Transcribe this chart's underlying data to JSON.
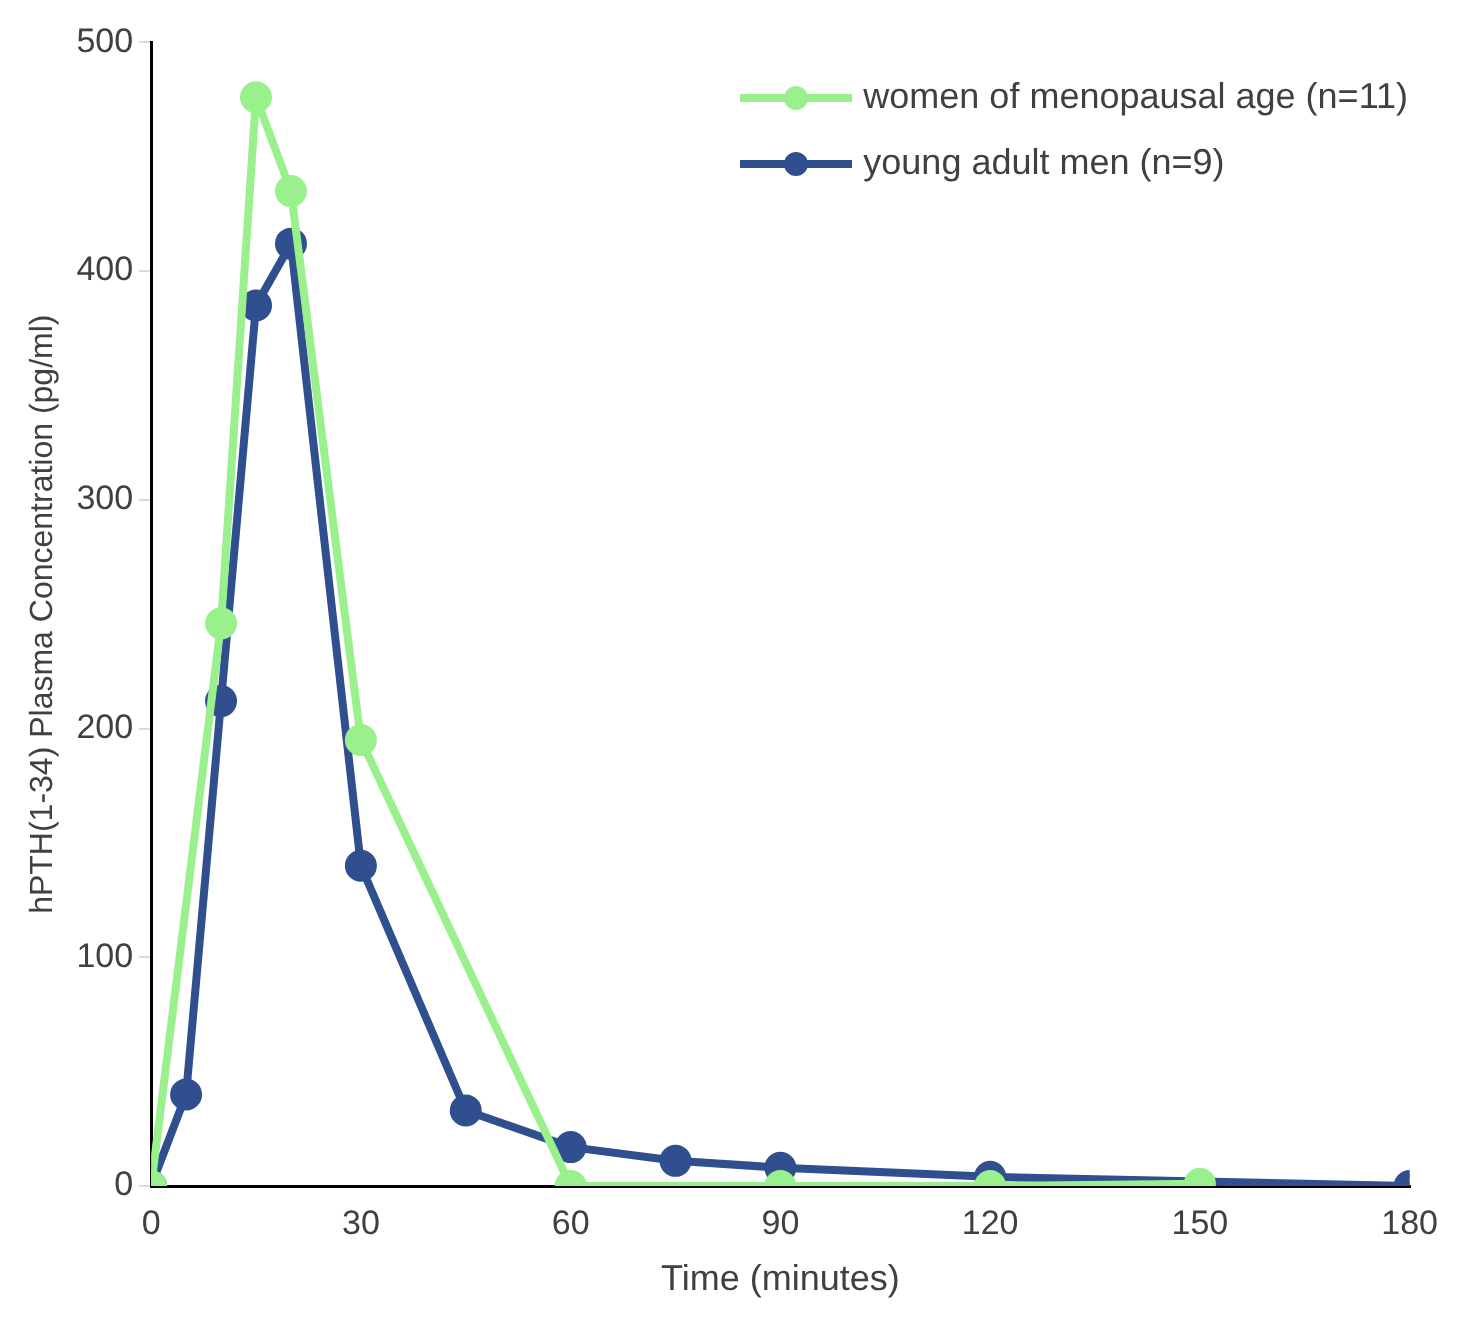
{
  "chart_data": {
    "type": "line",
    "xlabel": "Time (minutes)",
    "ylabel": "hPTH(1-34) Plasma Concentration (pg/ml)",
    "xlim": [
      0,
      180
    ],
    "xticks": [
      0,
      30,
      60,
      90,
      120,
      150,
      180
    ],
    "ylim": [
      0,
      500
    ],
    "yticks": [
      0,
      100,
      200,
      300,
      400,
      500
    ],
    "grid": false,
    "legend": "top right",
    "marker": "circle",
    "line_style": "solid",
    "series": [
      {
        "name": "women of menopausal age (n=11)",
        "color": "#99f08c",
        "x": [
          0,
          10,
          15,
          20,
          30,
          60,
          90,
          120,
          150
        ],
        "values": [
          0,
          246,
          476,
          435,
          195,
          0,
          0,
          0,
          1
        ]
      },
      {
        "name": "young adult men (n=9)",
        "color": "#2f4f8f",
        "x": [
          0,
          5,
          10,
          15,
          20,
          30,
          45,
          60,
          75,
          90,
          120,
          180
        ],
        "values": [
          0,
          40,
          212,
          385,
          412,
          140,
          33,
          17,
          11,
          8,
          4,
          0
        ]
      }
    ]
  }
}
